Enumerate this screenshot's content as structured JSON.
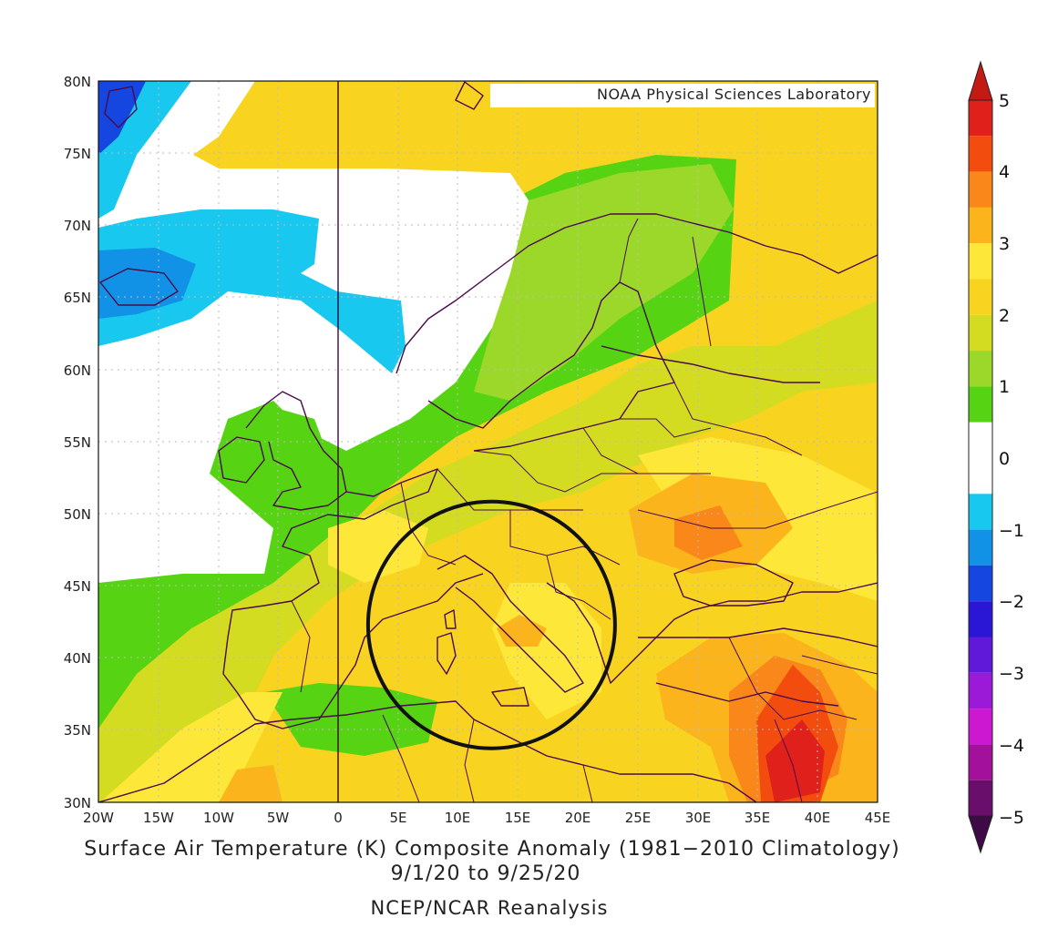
{
  "map": {
    "credit": "NOAA Physical Sciences Laboratory",
    "lat_ticks": [
      "80N",
      "75N",
      "70N",
      "65N",
      "60N",
      "55N",
      "50N",
      "45N",
      "40N",
      "35N",
      "30N"
    ],
    "lon_ticks": [
      "20W",
      "15W",
      "10W",
      "5W",
      "0",
      "5E",
      "10E",
      "15E",
      "20E",
      "25E",
      "30E",
      "35E",
      "40E",
      "45E"
    ],
    "extent": {
      "lon": [
        -20,
        45
      ],
      "lat": [
        30,
        80
      ]
    },
    "circle_center": {
      "lon": 12.8,
      "lat": 42.3
    },
    "circle_radius_deg": 10.3
  },
  "colorbar": {
    "labels": [
      "5",
      "4",
      "3",
      "2",
      "1",
      "0",
      "−1",
      "−2",
      "−3",
      "−4",
      "−5"
    ],
    "bins": [
      {
        "from": 4.5,
        "to": 5,
        "color": "#e0201a"
      },
      {
        "from": 4,
        "to": 4.5,
        "color": "#f24d0e"
      },
      {
        "from": 3.5,
        "to": 4,
        "color": "#f9871a"
      },
      {
        "from": 3,
        "to": 3.5,
        "color": "#fbb41c"
      },
      {
        "from": 2.5,
        "to": 3,
        "color": "#fde83a"
      },
      {
        "from": 2,
        "to": 2.5,
        "color": "#f8d320"
      },
      {
        "from": 1.5,
        "to": 2,
        "color": "#d3dc20"
      },
      {
        "from": 1,
        "to": 1.5,
        "color": "#9bd82a"
      },
      {
        "from": 0.5,
        "to": 1,
        "color": "#56d414"
      },
      {
        "from": -0.5,
        "to": 0.5,
        "color": "#ffffff"
      },
      {
        "from": -1,
        "to": -0.5,
        "color": "#19c8ee"
      },
      {
        "from": -1.5,
        "to": -1,
        "color": "#1292e6"
      },
      {
        "from": -2,
        "to": -1.5,
        "color": "#1546e0"
      },
      {
        "from": -2.5,
        "to": -2,
        "color": "#2a17d6"
      },
      {
        "from": -3,
        "to": -2.5,
        "color": "#6018d9"
      },
      {
        "from": -3.5,
        "to": -3,
        "color": "#9a1ad8"
      },
      {
        "from": -4,
        "to": -3.5,
        "color": "#cc18d0"
      },
      {
        "from": -4.5,
        "to": -4,
        "color": "#a3119c"
      },
      {
        "from": -5,
        "to": -4.5,
        "color": "#6a0e6c"
      }
    ],
    "arrow_top_color": "#c41a14",
    "arrow_bottom_color": "#3d0a46"
  },
  "titles": {
    "line1": "Surface Air Temperature (K) Composite Anomaly (1981−2010 Climatology)",
    "line2": "9/1/20  to 9/25/20",
    "line3": "NCEP/NCAR Reanalysis"
  }
}
